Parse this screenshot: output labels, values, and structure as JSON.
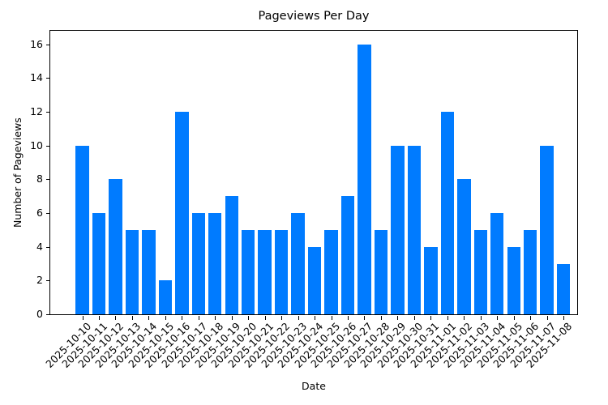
{
  "chart_data": {
    "type": "bar",
    "title": "Pageviews Per Day",
    "xlabel": "Date",
    "ylabel": "Number of Pageviews",
    "categories": [
      "2025-10-10",
      "2025-10-11",
      "2025-10-12",
      "2025-10-13",
      "2025-10-14",
      "2025-10-15",
      "2025-10-16",
      "2025-10-17",
      "2025-10-18",
      "2025-10-19",
      "2025-10-20",
      "2025-10-21",
      "2025-10-22",
      "2025-10-23",
      "2025-10-24",
      "2025-10-25",
      "2025-10-26",
      "2025-10-27",
      "2025-10-28",
      "2025-10-29",
      "2025-10-30",
      "2025-10-31",
      "2025-11-01",
      "2025-11-02",
      "2025-11-03",
      "2025-11-04",
      "2025-11-05",
      "2025-11-06",
      "2025-11-07",
      "2025-11-08"
    ],
    "values": [
      10,
      6,
      8,
      5,
      5,
      2,
      12,
      6,
      6,
      7,
      5,
      5,
      5,
      6,
      4,
      5,
      7,
      16,
      5,
      10,
      10,
      4,
      12,
      8,
      5,
      6,
      4,
      5,
      10,
      3
    ],
    "ylim": [
      0,
      16.8
    ],
    "yticks": [
      0,
      2,
      4,
      6,
      8,
      10,
      12,
      14,
      16
    ],
    "grid": false,
    "legend": null,
    "bar_color": "#007bff",
    "xtick_rotation": 45
  }
}
